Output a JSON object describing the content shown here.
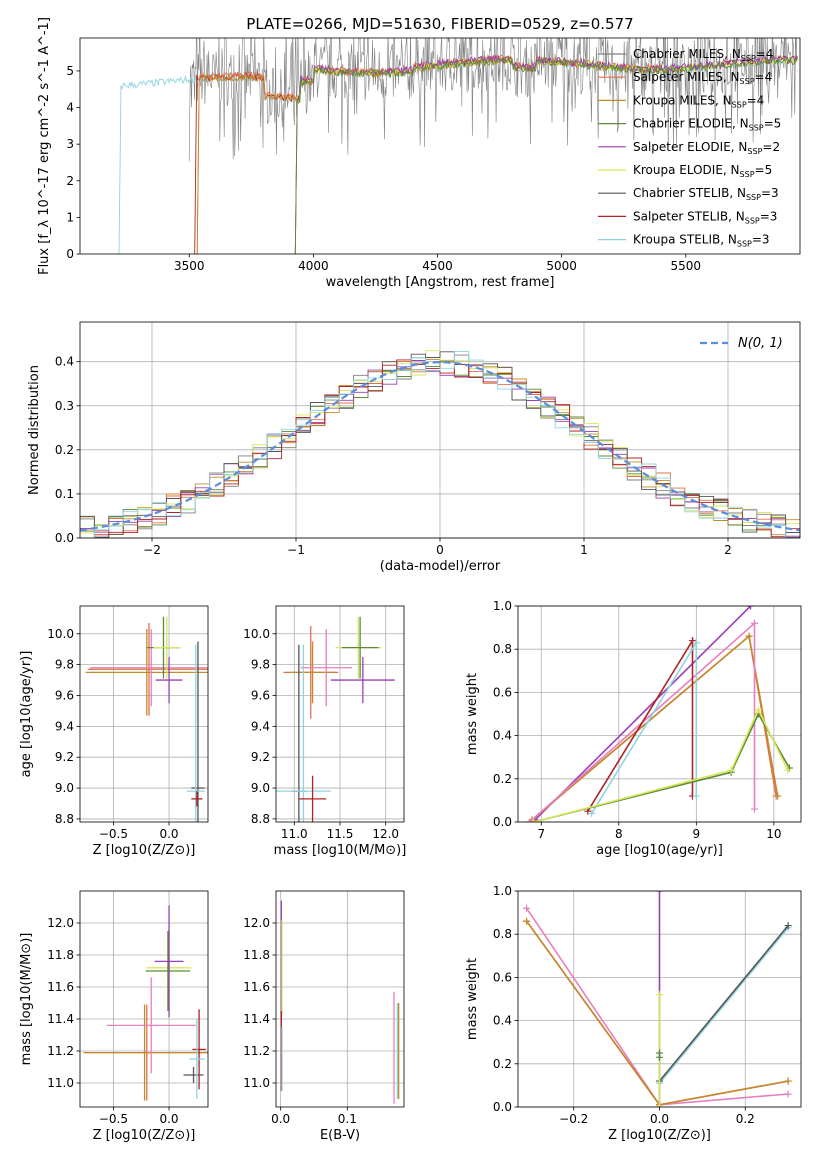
{
  "figure_title": "PLATE=0266, MJD=51630, FIBERID=0529, z=0.577",
  "colors": {
    "chabrier_miles": "#7f7f7f",
    "salpeter_miles": "#e0704a",
    "kroupa_miles": "#c28a2b",
    "chabrier_elodie": "#5a8a3a",
    "salpeter_elodie": "#9b3fb5",
    "kroupa_elodie": "#d6e85a",
    "chabrier_stelib": "#555555",
    "salpeter_stelib": "#b22222",
    "kroupa_stelib": "#8fd3e0",
    "pink": "#e87fc0",
    "normal_curve": "#5b8ddf"
  },
  "legend": [
    {
      "label": "Chabrier MILES, N",
      "sub": "SSP",
      "suffix": "=4",
      "color": "chabrier_miles"
    },
    {
      "label": "Salpeter MILES, N",
      "sub": "SSP",
      "suffix": "=4",
      "color": "salpeter_miles"
    },
    {
      "label": "Kroupa MILES, N",
      "sub": "SSP",
      "suffix": "=4",
      "color": "kroupa_miles"
    },
    {
      "label": "Chabrier ELODIE, N",
      "sub": "SSP",
      "suffix": "=5",
      "color": "chabrier_elodie"
    },
    {
      "label": "Salpeter ELODIE, N",
      "sub": "SSP",
      "suffix": "=2",
      "color": "salpeter_elodie"
    },
    {
      "label": "Kroupa ELODIE, N",
      "sub": "SSP",
      "suffix": "=5",
      "color": "kroupa_elodie"
    },
    {
      "label": "Chabrier STELIB, N",
      "sub": "SSP",
      "suffix": "=3",
      "color": "chabrier_stelib"
    },
    {
      "label": "Salpeter STELIB, N",
      "sub": "SSP",
      "suffix": "=3",
      "color": "salpeter_stelib"
    },
    {
      "label": "Kroupa STELIB, N",
      "sub": "SSP",
      "suffix": "=3",
      "color": "kroupa_stelib"
    }
  ],
  "chart_data": [
    {
      "id": "spectrum",
      "type": "line",
      "xlabel": "wavelength [Angstrom, rest frame]",
      "ylabel": "Flux [f_λ 10^-17 erg cm^-2 s^-1 A^-1]",
      "xlim": [
        3060,
        5960
      ],
      "ylim": [
        0,
        5.9
      ],
      "xticks": [
        3500,
        4000,
        4500,
        5000,
        5500
      ],
      "yticks": [
        0,
        1,
        2,
        3,
        4,
        5
      ],
      "grid": false,
      "legend_position": "right",
      "series_ranges": [
        {
          "color": "kroupa_stelib",
          "start": 3225,
          "end": 5950
        },
        {
          "color": "salpeter_stelib",
          "start": 3530,
          "end": 5950
        },
        {
          "color": "salpeter_miles",
          "start": 3540,
          "end": 5400
        },
        {
          "color": "kroupa_miles",
          "start": 3540,
          "end": 5400
        },
        {
          "color": "kroupa_elodie",
          "start": 3935,
          "end": 5950
        },
        {
          "color": "salpeter_elodie",
          "start": 3935,
          "end": 5950
        },
        {
          "color": "chabrier_elodie",
          "start": 3935,
          "end": 5950
        }
      ],
      "data_start": 3500
    },
    {
      "id": "residuals",
      "type": "histogram",
      "xlabel": "(data-model)/error",
      "ylabel": "Normed distribution",
      "xlim": [
        -2.5,
        2.5
      ],
      "ylim": [
        0,
        0.49
      ],
      "xticks": [
        -2,
        -1,
        0,
        1,
        2
      ],
      "yticks": [
        0.0,
        0.1,
        0.2,
        0.3,
        0.4
      ],
      "grid": true,
      "legend_position": "top-right",
      "curve_label": "N(0, 1)",
      "bin_width": 0.1
    },
    {
      "id": "age_vs_Z",
      "type": "errorbar",
      "xlabel": "Z [log10(Z/Z⊙)]",
      "ylabel": "age [log10(age/yr)]",
      "xlim": [
        -0.8,
        0.35
      ],
      "ylim": [
        8.78,
        10.18
      ],
      "xticks": [
        -0.5,
        0.0
      ],
      "yticks": [
        8.8,
        9.0,
        9.2,
        9.4,
        9.6,
        9.8,
        10.0
      ],
      "grid": true,
      "points": [
        {
          "x": -0.18,
          "y": 9.77,
          "xerr": 0.55,
          "yerr": 0.3,
          "color": "salpeter_miles"
        },
        {
          "x": -0.2,
          "y": 9.75,
          "xerr": 0.55,
          "yerr": 0.28,
          "color": "kroupa_miles"
        },
        {
          "x": -0.16,
          "y": 9.78,
          "xerr": 0.55,
          "yerr": 0.25,
          "color": "pink"
        },
        {
          "x": -0.05,
          "y": 9.91,
          "xerr": 0.15,
          "yerr": 0.2,
          "color": "chabrier_elodie"
        },
        {
          "x": -0.02,
          "y": 9.91,
          "xerr": 0.12,
          "yerr": 0.2,
          "color": "kroupa_elodie"
        },
        {
          "x": 0.0,
          "y": 9.7,
          "xerr": 0.12,
          "yerr": 0.15,
          "color": "salpeter_elodie"
        },
        {
          "x": 0.26,
          "y": 9.0,
          "xerr": 0.06,
          "yerr": 0.95,
          "color": "chabrier_stelib"
        },
        {
          "x": 0.24,
          "y": 8.98,
          "xerr": 0.08,
          "yerr": 0.95,
          "color": "kroupa_stelib"
        },
        {
          "x": 0.25,
          "y": 8.93,
          "xerr": 0.05,
          "yerr": 0.05,
          "color": "salpeter_stelib"
        }
      ]
    },
    {
      "id": "age_vs_mass",
      "type": "errorbar",
      "xlabel": "mass [log10(M/M⊙)]",
      "ylabel": "",
      "xlim": [
        10.8,
        12.2
      ],
      "ylim": [
        8.78,
        10.18
      ],
      "xticks": [
        11.0,
        11.5,
        12.0
      ],
      "yticks": [
        8.8,
        9.0,
        9.2,
        9.4,
        9.6,
        9.8,
        10.0
      ],
      "grid": true,
      "points": [
        {
          "x": 11.18,
          "y": 9.75,
          "xerr": 0.3,
          "yerr": 0.3,
          "color": "salpeter_miles"
        },
        {
          "x": 11.2,
          "y": 9.75,
          "xerr": 0.25,
          "yerr": 0.2,
          "color": "kroupa_miles"
        },
        {
          "x": 11.35,
          "y": 9.78,
          "xerr": 0.28,
          "yerr": 0.25,
          "color": "pink"
        },
        {
          "x": 11.7,
          "y": 9.91,
          "xerr": 0.25,
          "yerr": 0.2,
          "color": "kroupa_elodie"
        },
        {
          "x": 11.72,
          "y": 9.91,
          "xerr": 0.2,
          "yerr": 0.2,
          "color": "chabrier_elodie"
        },
        {
          "x": 11.75,
          "y": 9.7,
          "xerr": 0.35,
          "yerr": 0.15,
          "color": "salpeter_elodie"
        },
        {
          "x": 11.05,
          "y": 8.98,
          "xerr": 0.08,
          "yerr": 0.95,
          "color": "chabrier_stelib"
        },
        {
          "x": 11.1,
          "y": 8.98,
          "xerr": 0.3,
          "yerr": 0.95,
          "color": "kroupa_stelib"
        },
        {
          "x": 11.2,
          "y": 8.93,
          "xerr": 0.15,
          "yerr": 0.15,
          "color": "salpeter_stelib"
        }
      ]
    },
    {
      "id": "weight_vs_age",
      "type": "line",
      "xlabel": "age [log10(age/yr)]",
      "ylabel": "mass weight",
      "xlim": [
        6.7,
        10.35
      ],
      "ylim": [
        0,
        1
      ],
      "xticks": [
        7,
        8,
        9,
        10
      ],
      "yticks": [
        0.0,
        0.2,
        0.4,
        0.6,
        0.8,
        1.0
      ],
      "grid": true,
      "series": [
        {
          "color": "salpeter_elodie",
          "x": [
            6.92,
            9.7
          ],
          "y": [
            0.01,
            1.0
          ]
        },
        {
          "color": "salpeter_miles",
          "x": [
            6.88,
            9.68,
            10.03
          ],
          "y": [
            0.01,
            0.86,
            0.12
          ]
        },
        {
          "color": "kroupa_miles",
          "x": [
            6.85,
            9.68,
            10.05
          ],
          "y": [
            0.0,
            0.86,
            0.12
          ]
        },
        {
          "color": "pink",
          "x": [
            6.85,
            9.75,
            9.75
          ],
          "y": [
            0.0,
            0.92,
            0.06
          ]
        },
        {
          "color": "salpeter_stelib",
          "x": [
            7.6,
            8.95,
            8.95
          ],
          "y": [
            0.05,
            0.84,
            0.12
          ]
        },
        {
          "color": "kroupa_stelib",
          "x": [
            7.65,
            9.0,
            9.0
          ],
          "y": [
            0.04,
            0.83,
            0.12
          ]
        },
        {
          "color": "chabrier_elodie",
          "x": [
            6.9,
            9.45,
            9.8,
            10.2
          ],
          "y": [
            0.0,
            0.23,
            0.5,
            0.25
          ]
        },
        {
          "color": "kroupa_elodie",
          "x": [
            6.9,
            9.45,
            9.8,
            10.18
          ],
          "y": [
            0.0,
            0.24,
            0.52,
            0.24
          ]
        }
      ]
    },
    {
      "id": "mass_vs_Z",
      "type": "errorbar",
      "xlabel": "Z [log10(Z/Z⊙)]",
      "ylabel": "mass [log10(M/M⊙)]",
      "xlim": [
        -0.8,
        0.35
      ],
      "ylim": [
        10.85,
        12.2
      ],
      "xticks": [
        -0.5,
        0.0
      ],
      "yticks": [
        11.0,
        11.2,
        11.4,
        11.6,
        11.8,
        12.0
      ],
      "grid": true,
      "points": [
        {
          "x": -0.2,
          "y": 11.19,
          "xerr": 0.55,
          "yerr": 0.3,
          "color": "salpeter_miles"
        },
        {
          "x": -0.22,
          "y": 11.19,
          "xerr": 0.55,
          "yerr": 0.3,
          "color": "kroupa_miles"
        },
        {
          "x": -0.16,
          "y": 11.36,
          "xerr": 0.4,
          "yerr": 0.3,
          "color": "pink"
        },
        {
          "x": 0.0,
          "y": 11.72,
          "xerr": 0.2,
          "yerr": 0.25,
          "color": "kroupa_elodie"
        },
        {
          "x": -0.01,
          "y": 11.7,
          "xerr": 0.2,
          "yerr": 0.25,
          "color": "chabrier_elodie"
        },
        {
          "x": 0.0,
          "y": 11.76,
          "xerr": 0.13,
          "yerr": 0.35,
          "color": "salpeter_elodie"
        },
        {
          "x": 0.22,
          "y": 11.05,
          "xerr": 0.09,
          "yerr": 0.05,
          "color": "chabrier_stelib"
        },
        {
          "x": 0.27,
          "y": 11.21,
          "xerr": 0.06,
          "yerr": 0.25,
          "color": "salpeter_stelib"
        },
        {
          "x": 0.25,
          "y": 11.15,
          "xerr": 0.07,
          "yerr": 0.25,
          "color": "kroupa_stelib"
        }
      ]
    },
    {
      "id": "mass_vs_ebv",
      "type": "errorbar",
      "xlabel": "E(B-V)",
      "ylabel": "",
      "xlim": [
        -0.007,
        0.185
      ],
      "ylim": [
        10.85,
        12.2
      ],
      "xticks": [
        0.0,
        0.1
      ],
      "yticks": [
        11.0,
        11.2,
        11.4,
        11.6,
        11.8,
        12.0
      ],
      "grid": true,
      "points": [
        {
          "x": 0.001,
          "y": 11.76,
          "xerr": 0,
          "yerr": 0.38,
          "color": "salpeter_elodie"
        },
        {
          "x": 0.002,
          "y": 11.72,
          "xerr": 0,
          "yerr": 0.3,
          "color": "kroupa_elodie"
        },
        {
          "x": 0.001,
          "y": 11.2,
          "xerr": 0,
          "yerr": 0.25,
          "color": "salpeter_stelib"
        },
        {
          "x": 0.002,
          "y": 11.15,
          "xerr": 0,
          "yerr": 0.2,
          "color": "kroupa_stelib"
        },
        {
          "x": 0.17,
          "y": 11.22,
          "xerr": 0,
          "yerr": 0.35,
          "color": "pink"
        },
        {
          "x": 0.175,
          "y": 11.2,
          "xerr": 0,
          "yerr": 0.3,
          "color": "kroupa_stelib"
        },
        {
          "x": 0.177,
          "y": 11.2,
          "xerr": 0,
          "yerr": 0.3,
          "color": "kroupa_miles"
        }
      ]
    },
    {
      "id": "weight_vs_Z",
      "type": "line",
      "xlabel": "Z [log10(Z/Z⊙)]",
      "ylabel": "mass weight",
      "xlim": [
        -0.33,
        0.33
      ],
      "ylim": [
        0,
        1
      ],
      "xticks": [
        -0.2,
        0.0,
        0.2
      ],
      "yticks": [
        0.0,
        0.2,
        0.4,
        0.6,
        0.8,
        1.0
      ],
      "grid": true,
      "series": [
        {
          "color": "pink",
          "x": [
            -0.31,
            0.0,
            0.3
          ],
          "y": [
            0.92,
            0.01,
            0.06
          ]
        },
        {
          "color": "salpeter_miles",
          "x": [
            -0.31,
            0.0,
            0.3
          ],
          "y": [
            0.86,
            0.01,
            0.12
          ]
        },
        {
          "color": "kroupa_miles",
          "x": [
            -0.31,
            0.0,
            0.3
          ],
          "y": [
            0.86,
            0.01,
            0.12
          ]
        },
        {
          "color": "salpeter_elodie",
          "x": [
            0.0,
            0.0
          ],
          "y": [
            1.0,
            0.0
          ]
        },
        {
          "color": "kroupa_stelib",
          "x": [
            0.0,
            0.3
          ],
          "y": [
            0.11,
            0.83
          ]
        },
        {
          "color": "chabrier_stelib",
          "x": [
            0.0,
            0.3
          ],
          "y": [
            0.12,
            0.84
          ]
        },
        {
          "color": "kroupa_elodie",
          "x": [
            0.0,
            0.0
          ],
          "y": [
            0.52,
            0.0
          ]
        },
        {
          "color": "chabrier_elodie",
          "x": [
            0.0,
            0.0
          ],
          "y": [
            0.25,
            0.23
          ]
        }
      ]
    }
  ]
}
